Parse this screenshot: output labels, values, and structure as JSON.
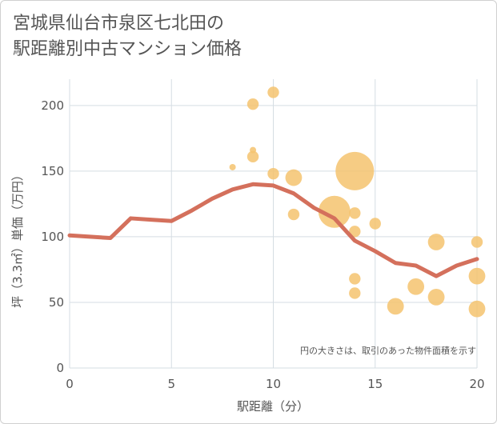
{
  "chart_data": {
    "type": "scatter",
    "title_lines": [
      "宮城県仙台市泉区七北田の",
      "駅距離別中古マンション価格"
    ],
    "xlabel": "駅距離（分）",
    "ylabel": "坪（3.3㎡）単価（万円）",
    "xlim": [
      0,
      20
    ],
    "ylim": [
      0,
      220
    ],
    "x_ticks": [
      0,
      5,
      10,
      15,
      20
    ],
    "y_ticks": [
      0,
      50,
      100,
      150,
      200
    ],
    "grid": true,
    "note": "円の大きさは、取引のあった物件面積を示す",
    "colors": {
      "bubble": "#f5c36e",
      "line": "#d4705c",
      "grid": "#d5dde3",
      "text": "#555555"
    },
    "bubbles": [
      {
        "x": 8,
        "y": 153,
        "size": 1.0
      },
      {
        "x": 9,
        "y": 201,
        "size": 1.8
      },
      {
        "x": 9,
        "y": 166,
        "size": 1.0
      },
      {
        "x": 9,
        "y": 161,
        "size": 1.8
      },
      {
        "x": 10,
        "y": 210,
        "size": 1.8
      },
      {
        "x": 10,
        "y": 148,
        "size": 1.8
      },
      {
        "x": 11,
        "y": 145,
        "size": 2.6
      },
      {
        "x": 11,
        "y": 117,
        "size": 1.8
      },
      {
        "x": 13,
        "y": 119,
        "size": 5.0
      },
      {
        "x": 14,
        "y": 150,
        "size": 6.0
      },
      {
        "x": 14,
        "y": 118,
        "size": 1.8
      },
      {
        "x": 14,
        "y": 104,
        "size": 1.8
      },
      {
        "x": 14,
        "y": 68,
        "size": 1.8
      },
      {
        "x": 14,
        "y": 57,
        "size": 1.8
      },
      {
        "x": 15,
        "y": 110,
        "size": 1.8
      },
      {
        "x": 16,
        "y": 47,
        "size": 2.6
      },
      {
        "x": 17,
        "y": 62,
        "size": 2.6
      },
      {
        "x": 18,
        "y": 96,
        "size": 2.6
      },
      {
        "x": 18,
        "y": 54,
        "size": 2.6
      },
      {
        "x": 20,
        "y": 96,
        "size": 1.8
      },
      {
        "x": 20,
        "y": 70,
        "size": 2.6
      },
      {
        "x": 20,
        "y": 45,
        "size": 2.6
      }
    ],
    "trend_line": {
      "x": [
        0,
        1,
        2,
        3,
        4,
        5,
        6,
        7,
        8,
        9,
        10,
        11,
        12,
        13,
        14,
        15,
        16,
        17,
        18,
        19,
        20
      ],
      "y": [
        101,
        100,
        99,
        114,
        113,
        112,
        120,
        129,
        136,
        140,
        139,
        133,
        122,
        114,
        97,
        89,
        80,
        78,
        70,
        78,
        83
      ]
    }
  }
}
